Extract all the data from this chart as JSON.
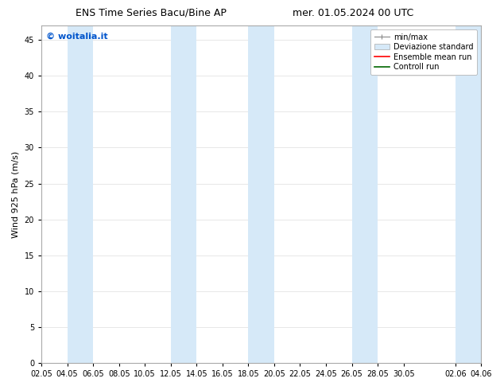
{
  "title_left": "ENS Time Series Bacu/Bine AP",
  "title_right": "mer. 01.05.2024 00 UTC",
  "ylabel": "Wind 925 hPa (m/s)",
  "watermark": "© woitalia.it",
  "bg_color": "#ffffff",
  "plot_bg_color": "#ffffff",
  "ylim": [
    0,
    47
  ],
  "yticks": [
    0,
    5,
    10,
    15,
    20,
    25,
    30,
    35,
    40,
    45
  ],
  "xtick_labels": [
    "02.05",
    "04.05",
    "06.05",
    "08.05",
    "10.05",
    "12.05",
    "14.05",
    "16.05",
    "18.05",
    "20.05",
    "22.05",
    "24.05",
    "26.05",
    "28.05",
    "30.05",
    "02.06",
    "04.06"
  ],
  "xtick_positions": [
    0,
    2,
    4,
    6,
    8,
    10,
    12,
    14,
    16,
    18,
    20,
    22,
    24,
    26,
    28,
    32,
    34
  ],
  "xlim_start": 0,
  "xlim_end": 34,
  "shaded_bands": [
    {
      "x_start": 2,
      "x_end": 4,
      "color": "#d6e9f8"
    },
    {
      "x_start": 10,
      "x_end": 12,
      "color": "#d6e9f8"
    },
    {
      "x_start": 16,
      "x_end": 18,
      "color": "#d6e9f8"
    },
    {
      "x_start": 24,
      "x_end": 26,
      "color": "#d6e9f8"
    },
    {
      "x_start": 32,
      "x_end": 34,
      "color": "#d6e9f8"
    }
  ],
  "legend_entries": [
    {
      "label": "min/max",
      "color": "#aaaaaa",
      "type": "errorbar"
    },
    {
      "label": "Deviazione standard",
      "color": "#d6e9f8",
      "type": "rect"
    },
    {
      "label": "Ensemble mean run",
      "color": "#ff0000",
      "type": "line"
    },
    {
      "label": "Controll run",
      "color": "#006600",
      "type": "line"
    }
  ],
  "spine_color": "#aaaaaa",
  "grid_color": "#dddddd",
  "tick_color": "#000000",
  "font_size_title": 9,
  "font_size_axis": 8,
  "font_size_tick": 7,
  "font_size_legend": 7,
  "font_size_watermark": 8,
  "watermark_color": "#0055cc"
}
